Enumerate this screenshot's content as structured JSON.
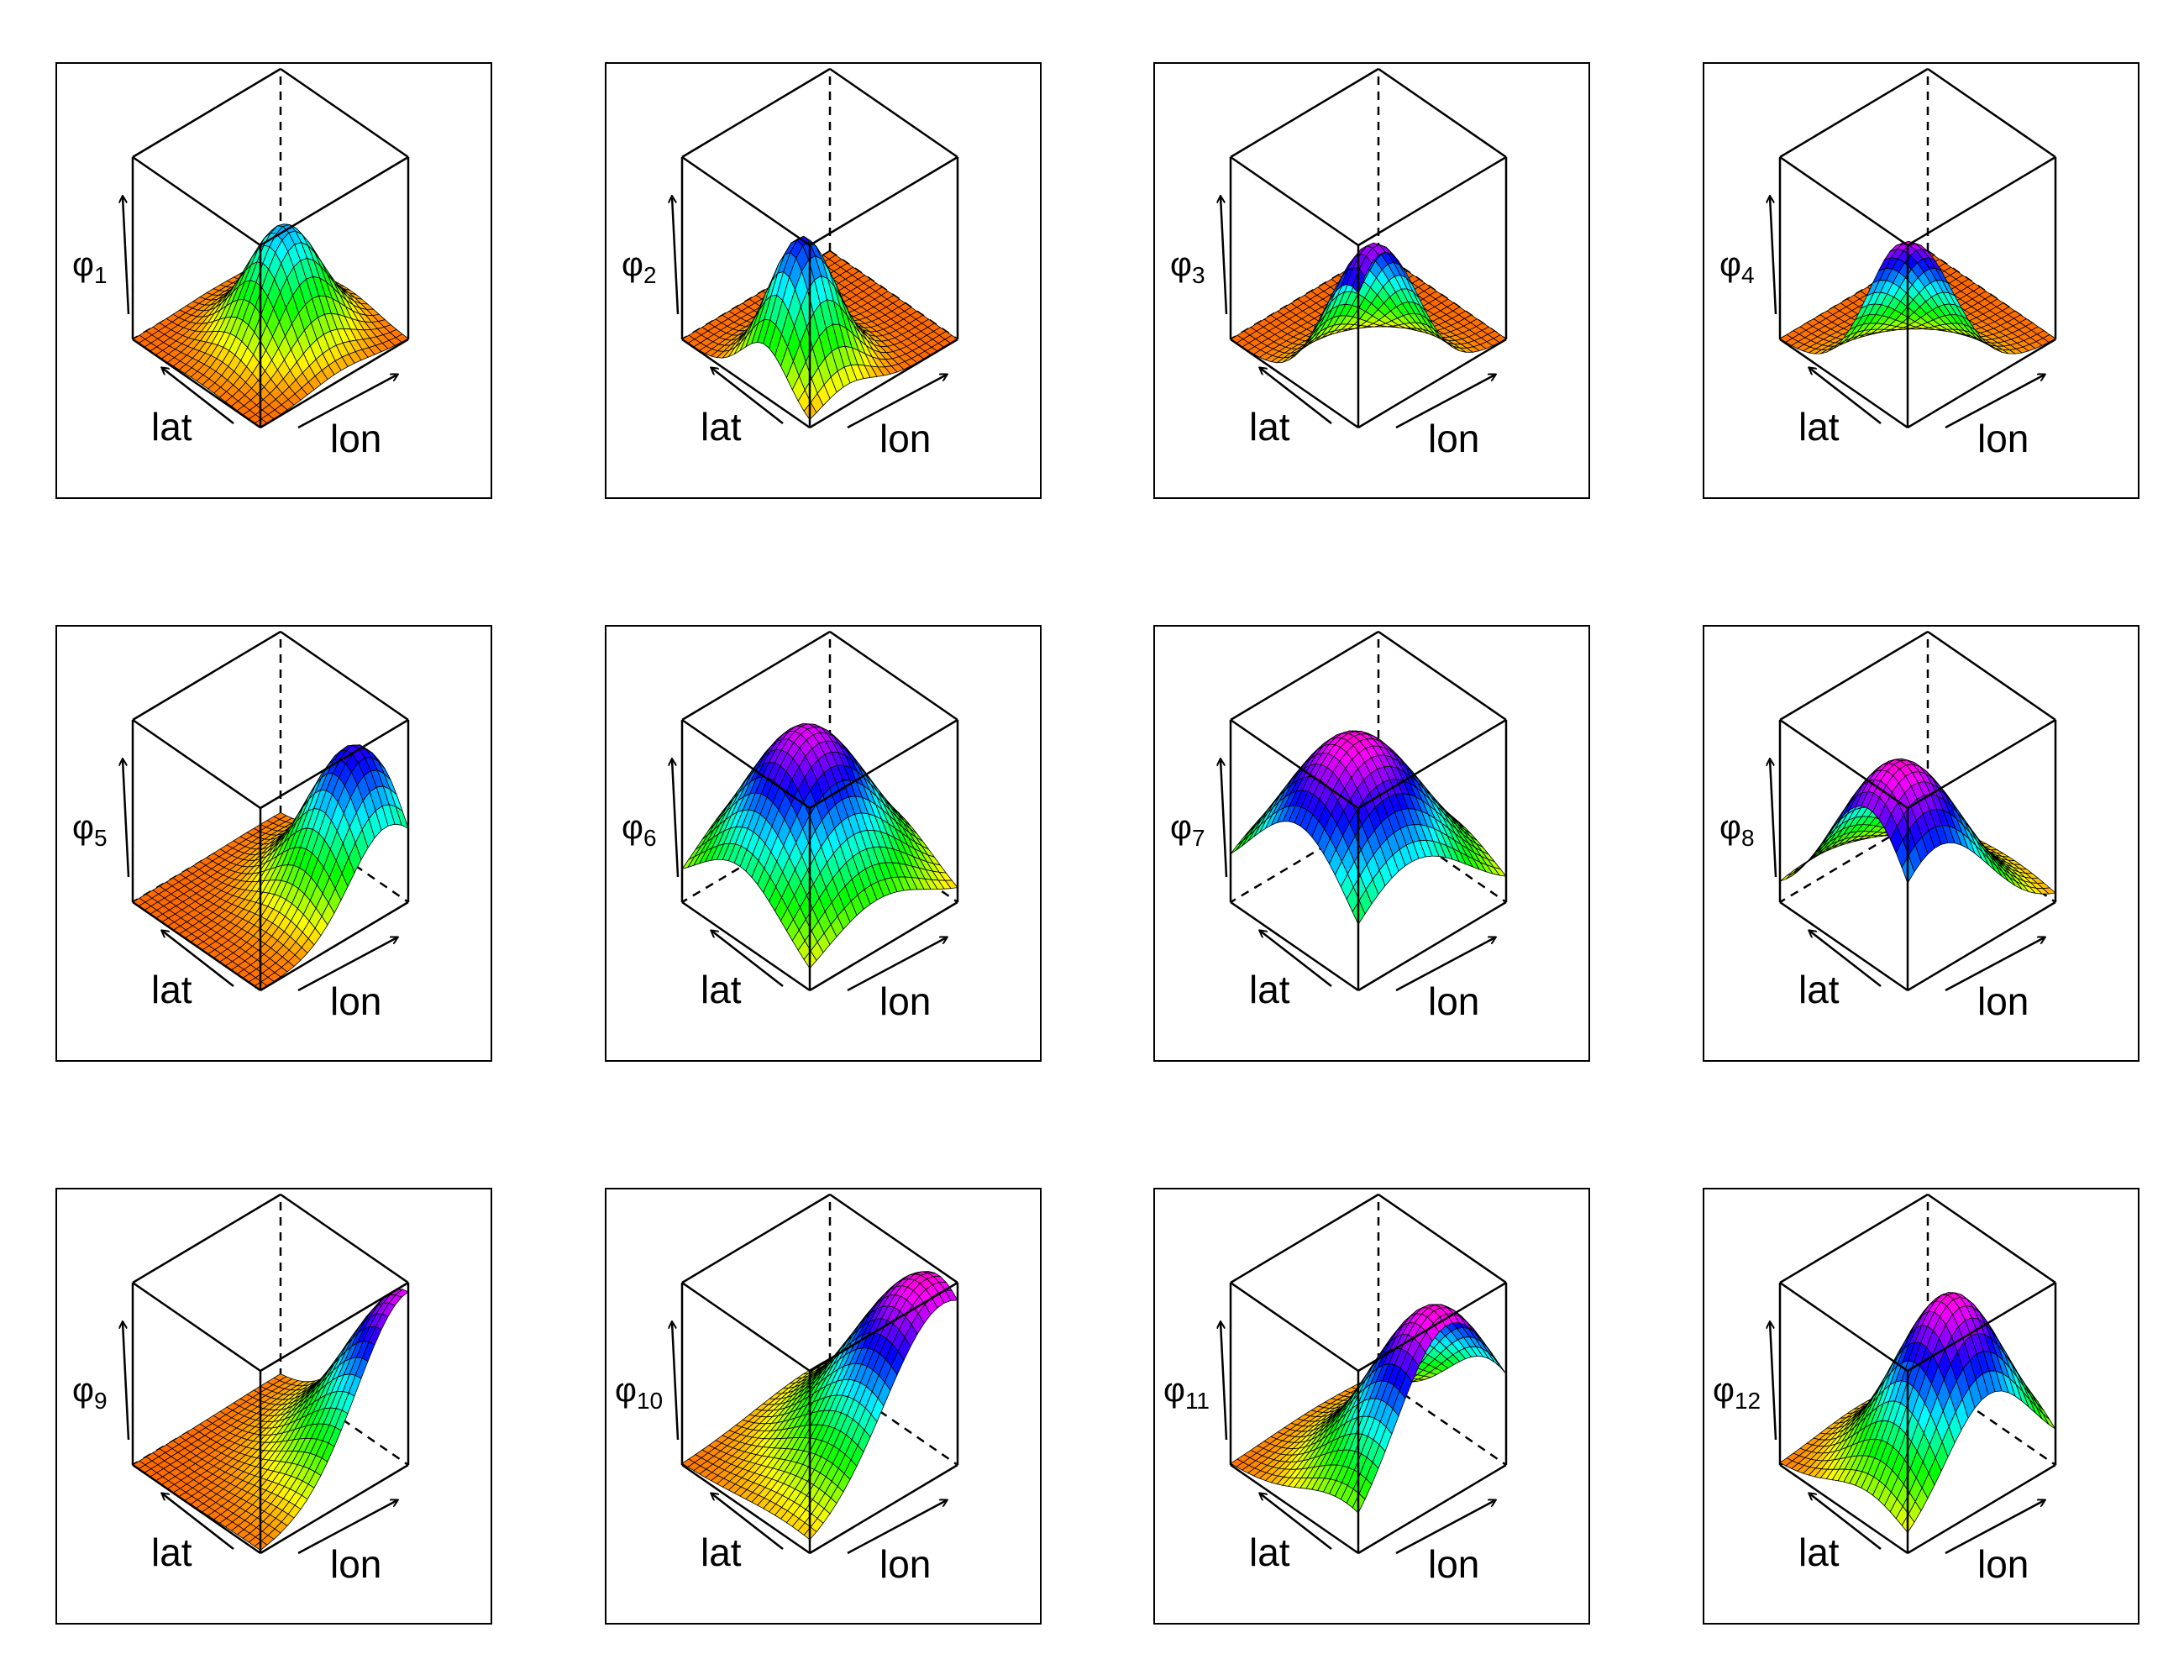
{
  "chart_data": [
    {
      "type": "surface",
      "z_label": "φ",
      "z_index": "1",
      "xlabel": "lon",
      "ylabel": "lat",
      "center": [
        0.55,
        0.45
      ],
      "width": 0.2,
      "peak": 0.62
    },
    {
      "type": "surface",
      "z_label": "φ",
      "z_index": "2",
      "xlabel": "lon",
      "ylabel": "lat",
      "center": [
        0.25,
        0.35
      ],
      "width": 0.18,
      "peak": 0.75
    },
    {
      "type": "surface",
      "z_label": "φ",
      "z_index": "3",
      "xlabel": "lon",
      "ylabel": "lat",
      "center": [
        0.15,
        0.05
      ],
      "width": 0.25,
      "peak": 0.9
    },
    {
      "type": "surface",
      "z_label": "φ",
      "z_index": "4",
      "xlabel": "lon",
      "ylabel": "lat",
      "center": [
        0.0,
        0.0
      ],
      "width": 0.3,
      "peak": 1.0
    },
    {
      "type": "surface",
      "z_label": "φ",
      "z_index": "5",
      "xlabel": "lon",
      "ylabel": "lat",
      "center": [
        0.85,
        0.25
      ],
      "width": 0.25,
      "peak": 0.8
    },
    {
      "type": "surface",
      "z_label": "φ",
      "z_index": "6",
      "xlabel": "lon",
      "ylabel": "lat",
      "center": [
        0.45,
        0.55
      ],
      "width": 0.35,
      "peak": 0.95
    },
    {
      "type": "surface",
      "z_label": "φ",
      "z_index": "7",
      "xlabel": "lon",
      "ylabel": "lat",
      "center": [
        0.35,
        0.45
      ],
      "width": 0.4,
      "peak": 1.0
    },
    {
      "type": "surface",
      "z_label": "φ",
      "z_index": "8",
      "xlabel": "lon",
      "ylabel": "lat",
      "center": [
        0.2,
        0.3
      ],
      "width": 0.35,
      "peak": 1.0
    },
    {
      "type": "surface",
      "z_label": "φ",
      "z_index": "9",
      "xlabel": "lon",
      "ylabel": "lat",
      "center": [
        1.0,
        0.0
      ],
      "width": 0.35,
      "peak": 0.95
    },
    {
      "type": "surface",
      "z_label": "φ",
      "z_index": "10",
      "xlabel": "lon",
      "ylabel": "lat",
      "center": [
        0.9,
        0.15
      ],
      "width": 0.4,
      "peak": 1.0
    },
    {
      "type": "surface",
      "z_label": "φ",
      "z_index": "11",
      "xlabel": "lon",
      "ylabel": "lat",
      "center": [
        0.6,
        0.1
      ],
      "width": 0.35,
      "peak": 1.0
    },
    {
      "type": "surface",
      "z_label": "φ",
      "z_index": "12",
      "xlabel": "lon",
      "ylabel": "lat",
      "center": [
        0.55,
        0.3
      ],
      "width": 0.3,
      "peak": 1.0
    }
  ]
}
